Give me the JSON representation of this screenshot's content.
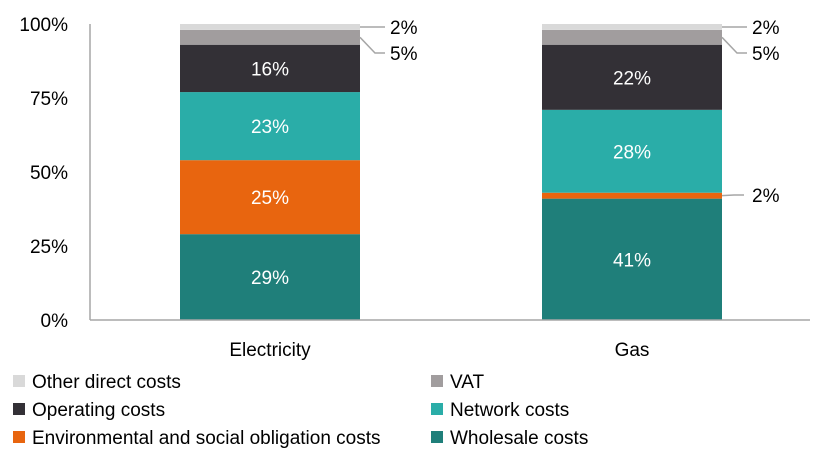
{
  "chart_data": {
    "type": "bar",
    "stacked": true,
    "categories": [
      "Electricity",
      "Gas"
    ],
    "series": [
      {
        "name": "Wholesale costs",
        "color": "#1f7f7a",
        "values": [
          29,
          41
        ]
      },
      {
        "name": "Environmental and social obligation costs",
        "color": "#e8650f",
        "values": [
          25,
          2
        ]
      },
      {
        "name": "Network costs",
        "color": "#2aada8",
        "values": [
          23,
          28
        ]
      },
      {
        "name": "Operating costs",
        "color": "#333036",
        "values": [
          16,
          22
        ]
      },
      {
        "name": "VAT",
        "color": "#a19d9e",
        "values": [
          5,
          5
        ]
      },
      {
        "name": "Other direct costs",
        "color": "#d9d9d9",
        "values": [
          2,
          2
        ]
      }
    ],
    "ylim": [
      0,
      100
    ],
    "yticks": [
      "0%",
      "25%",
      "50%",
      "75%",
      "100%"
    ],
    "grid": false,
    "legend_position": "bottom",
    "legend_order": [
      "Other direct costs",
      "VAT",
      "Operating costs",
      "Network costs",
      "Environmental and social obligation costs",
      "Wholesale costs"
    ]
  }
}
